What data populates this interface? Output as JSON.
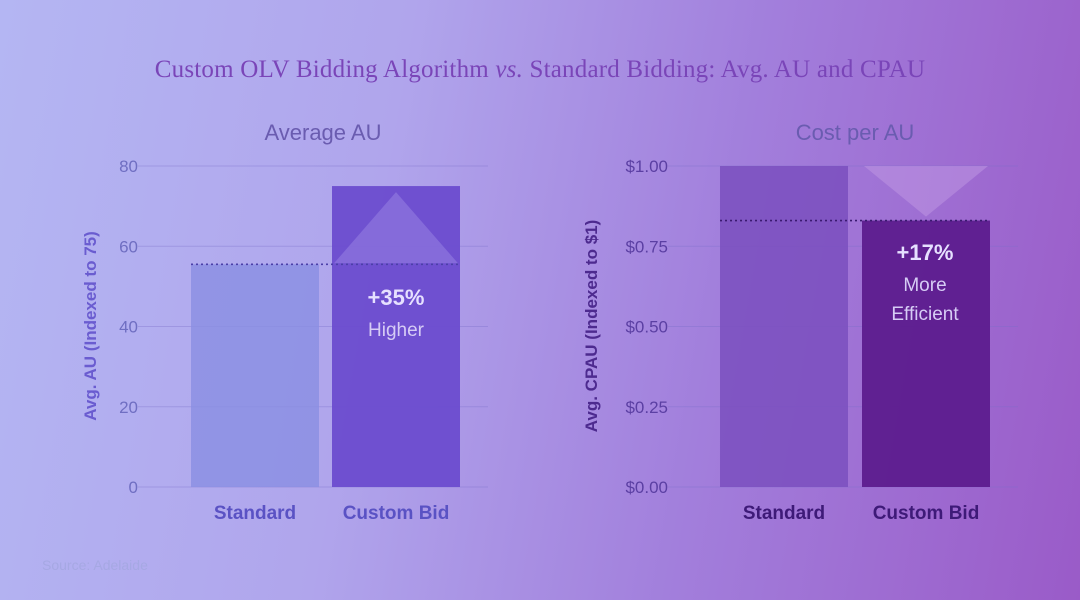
{
  "title": {
    "before": "Custom OLV Bidding Algorithm ",
    "vs": "vs.",
    "after": " Standard Bidding: Avg. AU and CPAU"
  },
  "source": "Source: Adelaide",
  "colors": {
    "left_standard": "#8a8fe2",
    "left_custom": "#6b4ccf",
    "right_standard": "#7a4fbe",
    "right_custom": "#5d1c8e",
    "left_axis_text": "#6f6ec2",
    "right_axis_text": "#4d2a8f"
  },
  "chart_data": [
    {
      "type": "bar",
      "title": "Average AU",
      "ylabel": "Avg. AU (Indexed to 75)",
      "categories": [
        "Standard",
        "Custom Bid"
      ],
      "values": [
        55.5,
        75
      ],
      "ylim": [
        0,
        80
      ],
      "yticks": [
        0,
        20,
        40,
        60,
        80
      ],
      "ytick_labels": [
        "0",
        "20",
        "40",
        "60",
        "80"
      ],
      "reference_line": 55.5,
      "annotation": {
        "value": "+35%",
        "text": "Higher"
      },
      "arrow": "up",
      "grid": true
    },
    {
      "type": "bar",
      "title": "Cost per AU",
      "ylabel": "Avg. CPAU (Indexed to $1)",
      "categories": [
        "Standard",
        "Custom Bid"
      ],
      "values": [
        1.0,
        0.83
      ],
      "ylim": [
        0,
        1.0
      ],
      "yticks": [
        0,
        0.25,
        0.5,
        0.75,
        1.0
      ],
      "ytick_labels": [
        "$0.00",
        "$0.25",
        "$0.50",
        "$0.75",
        "$1.00"
      ],
      "reference_line": 0.83,
      "annotation": {
        "value": "+17%",
        "text_lines": [
          "More",
          "Efficient"
        ]
      },
      "arrow": "down",
      "grid": true
    }
  ]
}
